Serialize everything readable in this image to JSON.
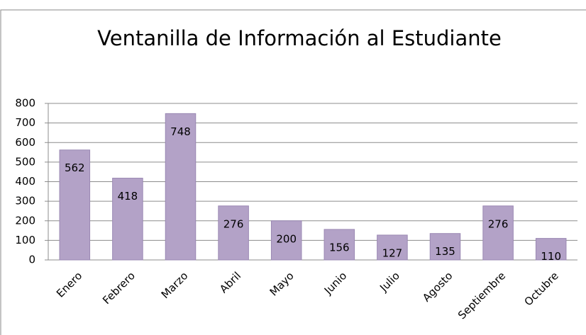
{
  "chart_data": {
    "type": "bar",
    "title": "Ventanilla de Información al Estudiante",
    "categories": [
      "Enero",
      "Febrero",
      "Marzo",
      "Abril",
      "Mayo",
      "Junio",
      "Julio",
      "Agosto",
      "Septiembre",
      "Octubre"
    ],
    "values": [
      562,
      418,
      748,
      276,
      200,
      156,
      127,
      135,
      276,
      110
    ],
    "color": "#b3a2c7",
    "ylim": [
      0,
      800
    ],
    "yticks": [
      0,
      100,
      200,
      300,
      400,
      500,
      600,
      700,
      800
    ],
    "grid": true
  }
}
